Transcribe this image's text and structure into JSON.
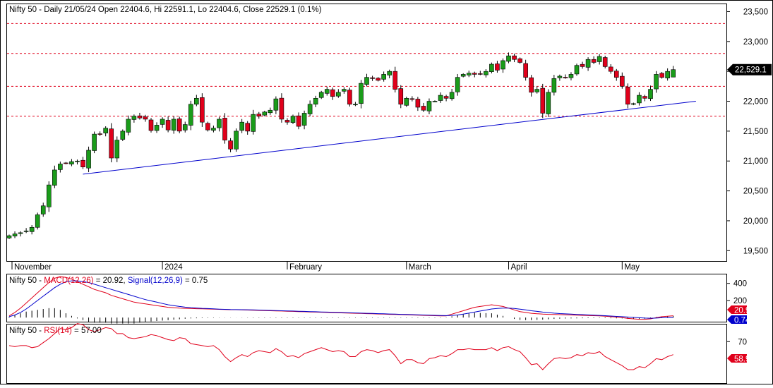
{
  "chart_data": [
    {
      "type": "candlestick",
      "title": "Nifty 50 - Daily 21/05/24 Open 22404.6, Hi 22591.1, Lo 22404.6, Close 22529.1 (0.1%)",
      "ylim": [
        19350,
        23600
      ],
      "y_ticks": [
        "19,500",
        "20,000",
        "20,500",
        "21,000",
        "21,500",
        "22,000",
        "22,500",
        "23,000",
        "23,500"
      ],
      "y_tick_values": [
        19500,
        20000,
        20500,
        21000,
        21500,
        22000,
        22500,
        23000,
        23500
      ],
      "x_labels": [
        {
          "label": "November",
          "bar": 0
        },
        {
          "label": "2024",
          "bar": 27
        },
        {
          "label": "February",
          "bar": 49
        },
        {
          "label": "March",
          "bar": 70
        },
        {
          "label": "April",
          "bar": 88
        },
        {
          "label": "May",
          "bar": 108
        }
      ],
      "last_price_label": "22,529.1",
      "horizontal_levels": [
        23300,
        22800,
        22250,
        21750
      ],
      "colors": {
        "up": "#1a9c1a",
        "down": "#e0001b",
        "level": "#e0001b",
        "trendline": "#0000cc"
      },
      "trendline": {
        "from": [
          13,
          20780
        ],
        "to": [
          121,
          22000
        ]
      },
      "closes": [
        19750,
        19780,
        19800,
        19830,
        19890,
        20100,
        20250,
        20600,
        20850,
        20950,
        20960,
        20990,
        21000,
        20900,
        21180,
        21450,
        21450,
        21550,
        21050,
        21350,
        21500,
        21700,
        21750,
        21720,
        21700,
        21510,
        21600,
        21700,
        21520,
        21700,
        21500,
        21610,
        21950,
        22050,
        21650,
        21520,
        21550,
        21700,
        21350,
        21200,
        21500,
        21650,
        21500,
        21780,
        21750,
        21820,
        21850,
        22040,
        21700,
        21650,
        21750,
        21580,
        21800,
        21950,
        22050,
        22150,
        22200,
        22080,
        22150,
        22200,
        21950,
        21950,
        22300,
        22400,
        22380,
        22350,
        22450,
        22500,
        22200,
        21950,
        22050,
        22030,
        21900,
        21850,
        22000,
        22000,
        22100,
        22050,
        22150,
        22400,
        22450,
        22470,
        22450,
        22460,
        22500,
        22620,
        22520,
        22680,
        22760,
        22700,
        22650,
        22400,
        22150,
        22200,
        21800,
        22150,
        22380,
        22420,
        22400,
        22450,
        22600,
        22580,
        22700,
        22650,
        22750,
        22580,
        22500,
        22400,
        22250,
        21950,
        21960,
        22100,
        22050,
        22200,
        22450,
        22400,
        22500,
        22529
      ],
      "last_ohlc": {
        "open": 22404.6,
        "high": 22591.1,
        "low": 22404.6,
        "close": 22529.1
      }
    },
    {
      "type": "line",
      "title_parts": [
        "Nifty 50 - ",
        "MACD(12,26)",
        " = 20.92, ",
        "Signal(12,26,9)",
        " = 0.75"
      ],
      "series": [
        {
          "name": "MACD(12,26)",
          "value": 20.92,
          "color": "#e0001b"
        },
        {
          "name": "Signal(12,26,9)",
          "value": 0.75,
          "color": "#0000cc"
        }
      ],
      "y_ticks": [
        "400",
        "200"
      ],
      "y_tick_values": [
        400,
        200
      ],
      "ylim": [
        -40,
        480
      ],
      "macd_values": [
        20,
        60,
        110,
        170,
        230,
        290,
        350,
        410,
        460,
        480,
        470,
        450,
        420,
        390,
        360,
        330,
        310,
        290,
        260,
        240,
        220,
        200,
        180,
        170,
        160,
        150,
        140,
        130,
        120,
        115,
        110,
        108,
        106,
        104,
        102,
        100,
        98,
        96,
        94,
        92,
        92,
        90,
        88,
        86,
        84,
        82,
        80,
        78,
        76,
        74,
        72,
        70,
        68,
        66,
        64,
        62,
        60,
        58,
        56,
        54,
        52,
        50,
        48,
        46,
        44,
        42,
        40,
        38,
        36,
        34,
        32,
        30,
        28,
        26,
        24,
        22,
        20,
        20,
        40,
        60,
        80,
        100,
        120,
        130,
        140,
        150,
        140,
        130,
        110,
        90,
        70,
        60,
        50,
        45,
        40,
        38,
        36,
        34,
        32,
        30,
        28,
        26,
        24,
        22,
        20,
        15,
        10,
        5,
        0,
        -10,
        -15,
        -20,
        -20,
        -15,
        0,
        10,
        15,
        20.92
      ],
      "signal_values": [
        10,
        30,
        60,
        100,
        150,
        200,
        250,
        300,
        350,
        390,
        420,
        430,
        430,
        420,
        410,
        390,
        370,
        350,
        330,
        310,
        290,
        270,
        250,
        230,
        210,
        195,
        180,
        165,
        150,
        140,
        130,
        122,
        116,
        112,
        108,
        105,
        102,
        99,
        96,
        94,
        93,
        92,
        91,
        90,
        88,
        86,
        84,
        82,
        80,
        78,
        76,
        74,
        72,
        70,
        68,
        66,
        64,
        62,
        60,
        58,
        56,
        54,
        52,
        50,
        48,
        46,
        44,
        42,
        40,
        38,
        36,
        34,
        32,
        30,
        28,
        26,
        24,
        23,
        25,
        30,
        40,
        52,
        64,
        76,
        88,
        100,
        106,
        110,
        110,
        106,
        98,
        90,
        80,
        72,
        64,
        58,
        52,
        47,
        43,
        40,
        37,
        34,
        31,
        28,
        25,
        22,
        18,
        14,
        10,
        6,
        2,
        -2,
        -6,
        -8,
        -6,
        -2,
        0.5,
        0.75
      ],
      "value_labels": [
        "20.915",
        "0.745458"
      ]
    },
    {
      "type": "line",
      "title_parts": [
        "Nifty 50 - ",
        "RSI(14)",
        " = 57.00"
      ],
      "series": [
        {
          "name": "RSI(14)",
          "value": 57.0,
          "color": "#e0001b"
        }
      ],
      "y_ticks": [
        "70"
      ],
      "y_tick_values": [
        70
      ],
      "ylim": [
        30,
        85
      ],
      "rsi_values": [
        66,
        65,
        66,
        66,
        64,
        65,
        69,
        73,
        78,
        83,
        82,
        84,
        88,
        87,
        82,
        80,
        82,
        84,
        83,
        78,
        78,
        74,
        73,
        74,
        75,
        77,
        76,
        74,
        72,
        71,
        74,
        73,
        68,
        67,
        66,
        65,
        66,
        62,
        55,
        50,
        54,
        57,
        55,
        59,
        61,
        60,
        59,
        63,
        60,
        55,
        56,
        54,
        58,
        60,
        62,
        64,
        62,
        60,
        61,
        60,
        55,
        55,
        60,
        62,
        61,
        59,
        61,
        62,
        56,
        48,
        52,
        52,
        49,
        48,
        53,
        54,
        56,
        55,
        58,
        62,
        62,
        63,
        62,
        62,
        62,
        64,
        61,
        64,
        65,
        62,
        60,
        54,
        47,
        48,
        42,
        48,
        53,
        54,
        53,
        54,
        57,
        56,
        59,
        58,
        60,
        55,
        52,
        49,
        46,
        42,
        42,
        45,
        44,
        48,
        53,
        52,
        55,
        57
      ]
    }
  ]
}
